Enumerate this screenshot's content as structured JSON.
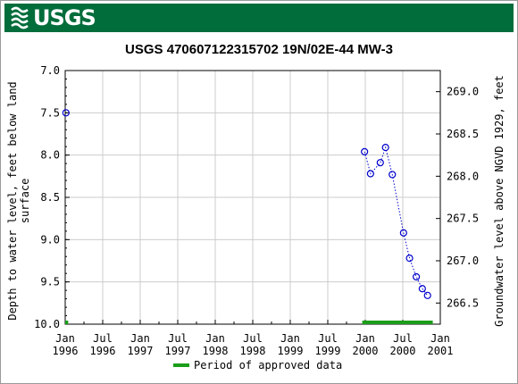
{
  "header": {
    "agency": "USGS"
  },
  "chart_data": {
    "type": "scatter",
    "title": "USGS 470607122315702 19N/02E-44    MW-3",
    "ylabel_left": "Depth to water level, feet below land surface",
    "ylabel_right": "Groundwater level above NGVD 1929, feet",
    "y_inverted": true,
    "ylim_left": [
      7.0,
      10.0
    ],
    "ylim_right": [
      266.25,
      269.25
    ],
    "x_ticks": [
      {
        "line1": "Jan",
        "line2": "1996",
        "t": 0
      },
      {
        "line1": "Jul",
        "line2": "1996",
        "t": 0.5
      },
      {
        "line1": "Jan",
        "line2": "1997",
        "t": 1
      },
      {
        "line1": "Jul",
        "line2": "1997",
        "t": 1.5
      },
      {
        "line1": "Jan",
        "line2": "1998",
        "t": 2
      },
      {
        "line1": "Jul",
        "line2": "1998",
        "t": 2.5
      },
      {
        "line1": "Jan",
        "line2": "1999",
        "t": 3
      },
      {
        "line1": "Jul",
        "line2": "1999",
        "t": 3.5
      },
      {
        "line1": "Jan",
        "line2": "2000",
        "t": 4
      },
      {
        "line1": "Jul",
        "line2": "2000",
        "t": 4.5
      },
      {
        "line1": "Jan",
        "line2": "2001",
        "t": 5
      }
    ],
    "y_ticks_left": [
      "7.0",
      "7.5",
      "8.0",
      "8.5",
      "9.0",
      "9.5",
      "10.0"
    ],
    "y_ticks_right": [
      "269.0",
      "268.5",
      "268.0",
      "267.5",
      "267.0",
      "266.5"
    ],
    "points": [
      {
        "date": "1996-01-05",
        "t": 0.01,
        "depth": 7.5,
        "connected": false
      },
      {
        "date": "1999-12-29",
        "t": 3.99,
        "depth": 7.96,
        "connected": true
      },
      {
        "date": "2000-01-25",
        "t": 4.07,
        "depth": 8.22,
        "connected": true
      },
      {
        "date": "2000-03-12",
        "t": 4.2,
        "depth": 8.09,
        "connected": true
      },
      {
        "date": "2000-04-07",
        "t": 4.27,
        "depth": 7.91,
        "connected": true
      },
      {
        "date": "2000-05-09",
        "t": 4.36,
        "depth": 8.23,
        "connected": true
      },
      {
        "date": "2000-07-05",
        "t": 4.51,
        "depth": 8.92,
        "connected": true
      },
      {
        "date": "2000-08-05",
        "t": 4.59,
        "depth": 9.22,
        "connected": true
      },
      {
        "date": "2000-09-05",
        "t": 4.68,
        "depth": 9.44,
        "connected": true
      },
      {
        "date": "2000-10-05",
        "t": 4.76,
        "depth": 9.58,
        "connected": true
      },
      {
        "date": "2000-10-29",
        "t": 4.83,
        "depth": 9.66,
        "connected": true
      }
    ],
    "approved_periods": [
      {
        "start_t": 0.0,
        "end_t": 0.04
      },
      {
        "start_t": 3.96,
        "end_t": 4.9
      }
    ],
    "legend": {
      "label": "Period of approved data",
      "color": "#1a9e1a",
      "placement": "bottom-center"
    },
    "colors": {
      "points": "#0000cc",
      "approved": "#1a9e1a",
      "grid": "#cccccc"
    },
    "grid": true
  }
}
